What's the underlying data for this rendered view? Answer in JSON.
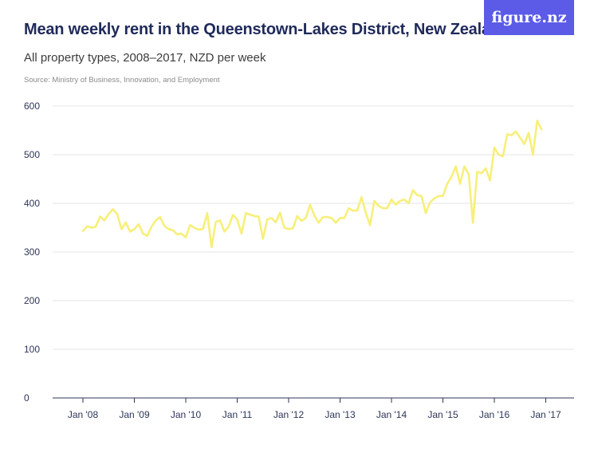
{
  "header": {
    "title": "Mean weekly rent in the Queenstown-Lakes District, New Zealand",
    "subtitle": "All property types, 2008–2017, NZD per week",
    "source": "Source: Ministry of Business, Innovation, and Employment"
  },
  "logo": {
    "text": "figure.nz",
    "color": "#5b5be8"
  },
  "colors": {
    "line": "#f7ef7a",
    "grid": "#e5e5e5",
    "axis": "#2c3557"
  },
  "chart_data": {
    "type": "line",
    "title": "Mean weekly rent in the Queenstown-Lakes District, New Zealand",
    "subtitle": "All property types, 2008–2017, NZD per week",
    "xlabel": "",
    "ylabel": "",
    "ylim": [
      0,
      600
    ],
    "yticks": [
      0,
      100,
      200,
      300,
      400,
      500,
      600
    ],
    "xlim": [
      2007.75,
      2017.6
    ],
    "xticks": [
      {
        "value": 2008,
        "label": "Jan '08"
      },
      {
        "value": 2009,
        "label": "Jan '09"
      },
      {
        "value": 2010,
        "label": "Jan '10"
      },
      {
        "value": 2011,
        "label": "Jan '11"
      },
      {
        "value": 2012,
        "label": "Jan '12"
      },
      {
        "value": 2013,
        "label": "Jan '13"
      },
      {
        "value": 2014,
        "label": "Jan '14"
      },
      {
        "value": 2015,
        "label": "Jan '15"
      },
      {
        "value": 2016,
        "label": "Jan '16"
      },
      {
        "value": 2017,
        "label": "Jan '17"
      }
    ],
    "grid": true,
    "series": [
      {
        "start": "2008-01",
        "frequency": "monthly",
        "values": [
          343,
          353,
          350,
          352,
          373,
          365,
          378,
          388,
          378,
          347,
          361,
          342,
          347,
          357,
          338,
          333,
          352,
          365,
          372,
          354,
          347,
          345,
          336,
          338,
          330,
          355,
          350,
          346,
          347,
          380,
          310,
          362,
          365,
          342,
          352,
          376,
          367,
          338,
          380,
          377,
          374,
          373,
          327,
          367,
          370,
          361,
          381,
          350,
          347,
          349,
          374,
          364,
          370,
          397,
          375,
          360,
          372,
          372,
          370,
          360,
          370,
          370,
          390,
          385,
          385,
          413,
          380,
          355,
          405,
          395,
          390,
          390,
          408,
          397,
          405,
          408,
          400,
          427,
          417,
          415,
          380,
          402,
          410,
          415,
          415,
          440,
          455,
          476,
          440,
          476,
          460,
          360,
          465,
          462,
          472,
          447,
          515,
          500,
          497,
          542,
          540,
          548,
          535,
          522,
          545,
          500,
          570,
          552
        ]
      }
    ]
  }
}
